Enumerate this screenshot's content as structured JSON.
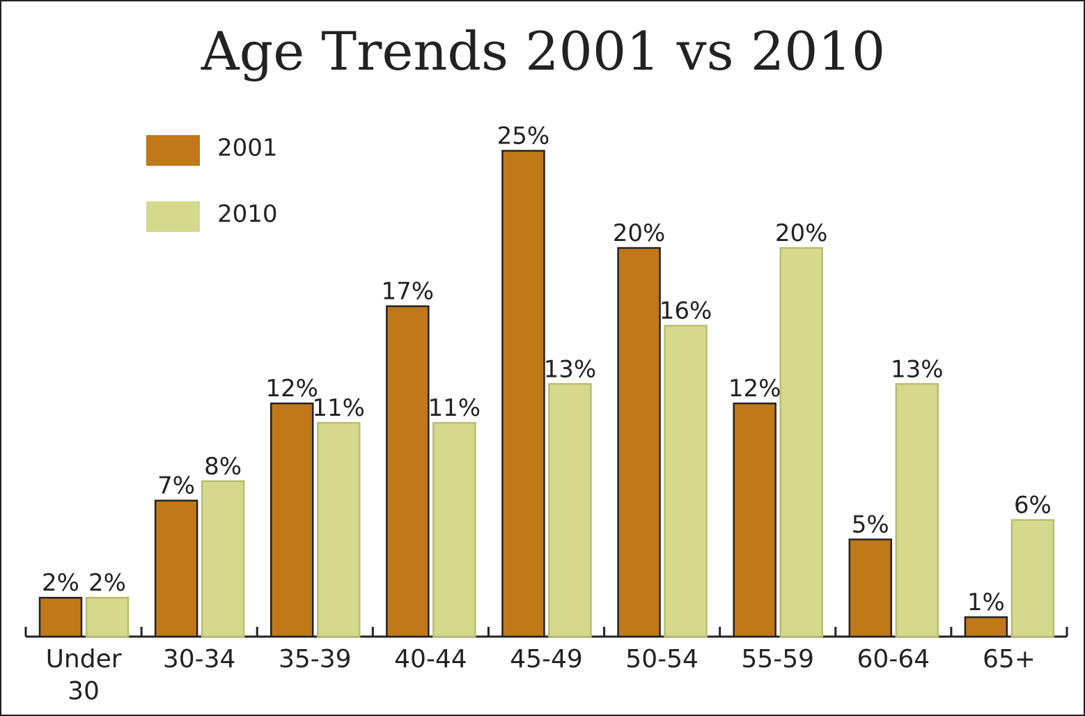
{
  "chart_data": {
    "type": "bar",
    "title": "Age Trends 2001 vs 2010",
    "categories": [
      "Under 30",
      "30-34",
      "35-39",
      "40-44",
      "45-49",
      "50-54",
      "55-59",
      "60-64",
      "65+"
    ],
    "series": [
      {
        "name": "2001",
        "color": "#c07818",
        "values": [
          2,
          7,
          12,
          17,
          25,
          20,
          12,
          5,
          1
        ],
        "value_labels": [
          "2%",
          "7%",
          "12%",
          "17%",
          "25%",
          "20%",
          "12%",
          "5%",
          "1%"
        ]
      },
      {
        "name": "2010",
        "color": "#d4d98c",
        "values": [
          2,
          8,
          11,
          11,
          13,
          16,
          20,
          13,
          6
        ],
        "value_labels": [
          "2%",
          "8%",
          "11%",
          "11%",
          "13%",
          "16%",
          "20%",
          "13%",
          "6%"
        ]
      }
    ],
    "legend": "upper left"
  }
}
